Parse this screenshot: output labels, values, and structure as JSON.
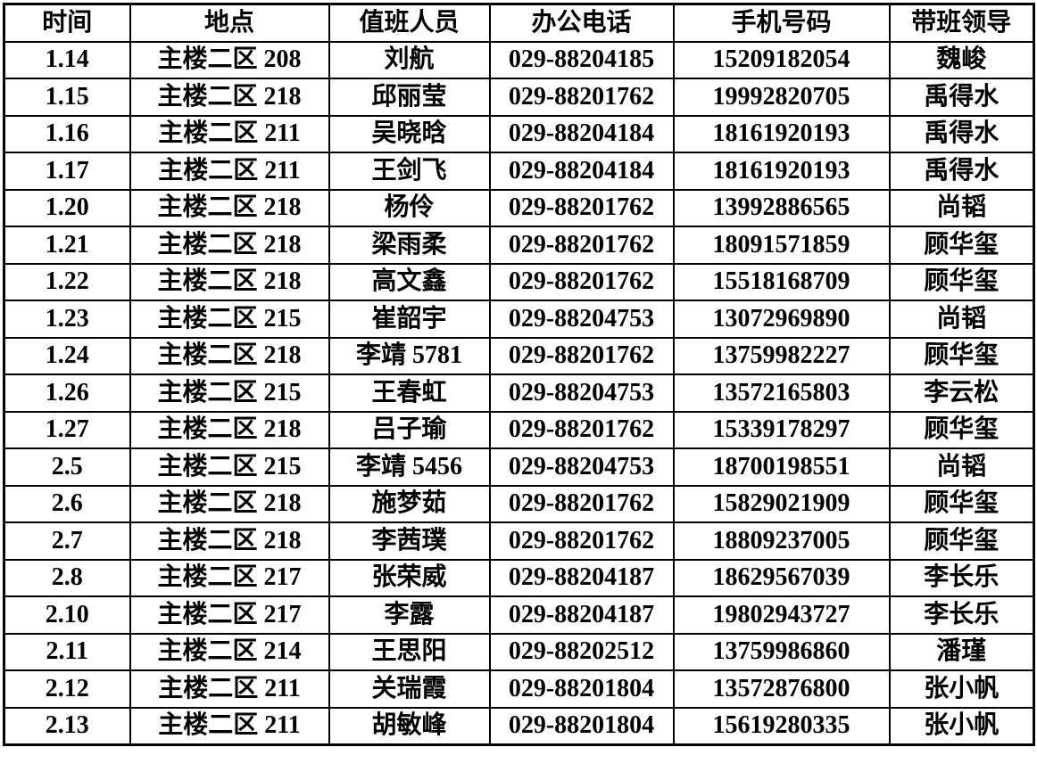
{
  "page": {
    "background_color": "#ffffff",
    "grid_line_color": "#000000",
    "text_color": "#000000"
  },
  "table": {
    "headers": [
      "时间",
      "地点",
      "值班人员",
      "办公电话",
      "手机号码",
      "带班领导"
    ],
    "rows": [
      [
        "1.14",
        "主楼二区 208",
        "刘航",
        "029-88204185",
        "15209182054",
        "魏峻"
      ],
      [
        "1.15",
        "主楼二区 218",
        "邱丽莹",
        "029-88201762",
        "19992820705",
        "禹得水"
      ],
      [
        "1.16",
        "主楼二区 211",
        "吴晓晗",
        "029-88204184",
        "18161920193",
        "禹得水"
      ],
      [
        "1.17",
        "主楼二区 211",
        "王剑飞",
        "029-88204184",
        "18161920193",
        "禹得水"
      ],
      [
        "1.20",
        "主楼二区 218",
        "杨伶",
        "029-88201762",
        "13992886565",
        "尚韬"
      ],
      [
        "1.21",
        "主楼二区 218",
        "梁雨柔",
        "029-88201762",
        "18091571859",
        "顾华玺"
      ],
      [
        "1.22",
        "主楼二区 218",
        "高文鑫",
        "029-88201762",
        "15518168709",
        "顾华玺"
      ],
      [
        "1.23",
        "主楼二区 215",
        "崔韶宇",
        "029-88204753",
        "13072969890",
        "尚韬"
      ],
      [
        "1.24",
        "主楼二区 218",
        "李靖 5781",
        "029-88201762",
        "13759982227",
        "顾华玺"
      ],
      [
        "1.26",
        "主楼二区 215",
        "王春虹",
        "029-88204753",
        "13572165803",
        "李云松"
      ],
      [
        "1.27",
        "主楼二区 218",
        "吕子瑜",
        "029-88201762",
        "15339178297",
        "顾华玺"
      ],
      [
        "2.5",
        "主楼二区 215",
        "李靖 5456",
        "029-88204753",
        "18700198551",
        "尚韬"
      ],
      [
        "2.6",
        "主楼二区 218",
        "施梦茹",
        "029-88201762",
        "15829021909",
        "顾华玺"
      ],
      [
        "2.7",
        "主楼二区 218",
        "李茜璞",
        "029-88201762",
        "18809237005",
        "顾华玺"
      ],
      [
        "2.8",
        "主楼二区 217",
        "张荣威",
        "029-88204187",
        "18629567039",
        "李长乐"
      ],
      [
        "2.10",
        "主楼二区 217",
        "李露",
        "029-88204187",
        "19802943727",
        "李长乐"
      ],
      [
        "2.11",
        "主楼二区 214",
        "王思阳",
        "029-88202512",
        "13759986860",
        "潘瑾"
      ],
      [
        "2.12",
        "主楼二区 211",
        "关瑞霞",
        "029-88201804",
        "13572876800",
        "张小帆"
      ],
      [
        "2.13",
        "主楼二区 211",
        "胡敏峰",
        "029-88201804",
        "15619280335",
        "张小帆"
      ]
    ]
  }
}
